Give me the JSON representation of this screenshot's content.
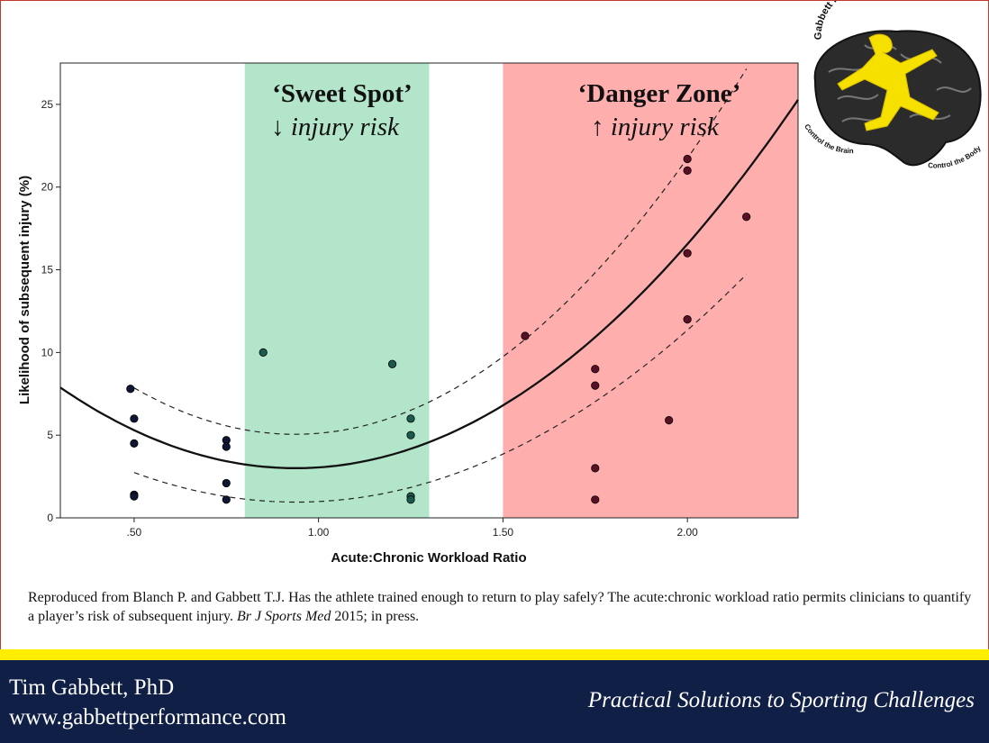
{
  "chart_data": {
    "type": "scatter",
    "xlabel": "Acute:Chronic Workload Ratio",
    "ylabel": "Likelihood of subsequent injury (%)",
    "xlim": [
      0.3,
      2.3
    ],
    "ylim": [
      0,
      27.5
    ],
    "x_ticks": [
      0.5,
      1.0,
      1.5,
      2.0
    ],
    "x_tick_labels": [
      ".50",
      "1.00",
      "1.50",
      "2.00"
    ],
    "y_ticks": [
      0,
      5,
      10,
      15,
      20,
      25
    ],
    "y_tick_labels": [
      "0",
      "5",
      "10",
      "15",
      "20",
      "25"
    ],
    "grid": false,
    "zones": [
      {
        "name": "Sweet Spot",
        "title": "‘Sweet Spot’",
        "subtitle_arrow": "↓",
        "subtitle_text": "injury risk",
        "x_range": [
          0.8,
          1.3
        ],
        "color": "#b3e5cb"
      },
      {
        "name": "Danger Zone",
        "title": "‘Danger Zone’",
        "subtitle_arrow": "↑",
        "subtitle_text": "injury risk",
        "x_range": [
          1.5,
          2.3
        ],
        "color": "#ffaeae"
      }
    ],
    "points": [
      {
        "x": 0.49,
        "y": 7.8
      },
      {
        "x": 0.5,
        "y": 6.0
      },
      {
        "x": 0.5,
        "y": 4.5
      },
      {
        "x": 0.5,
        "y": 1.4
      },
      {
        "x": 0.5,
        "y": 1.3
      },
      {
        "x": 0.75,
        "y": 4.7
      },
      {
        "x": 0.75,
        "y": 4.3
      },
      {
        "x": 0.75,
        "y": 2.1
      },
      {
        "x": 0.75,
        "y": 1.1
      },
      {
        "x": 0.85,
        "y": 10.0
      },
      {
        "x": 1.2,
        "y": 9.3
      },
      {
        "x": 1.25,
        "y": 6.0
      },
      {
        "x": 1.25,
        "y": 5.0
      },
      {
        "x": 1.25,
        "y": 1.3
      },
      {
        "x": 1.25,
        "y": 1.1
      },
      {
        "x": 1.56,
        "y": 11.0
      },
      {
        "x": 1.75,
        "y": 9.0
      },
      {
        "x": 1.75,
        "y": 8.0
      },
      {
        "x": 1.75,
        "y": 3.0
      },
      {
        "x": 1.75,
        "y": 1.1
      },
      {
        "x": 1.95,
        "y": 5.9
      },
      {
        "x": 2.0,
        "y": 21.7
      },
      {
        "x": 2.0,
        "y": 21.0
      },
      {
        "x": 2.0,
        "y": 16.0
      },
      {
        "x": 2.0,
        "y": 12.0
      },
      {
        "x": 2.16,
        "y": 18.2
      }
    ],
    "fit": {
      "type": "quadratic",
      "x_range": [
        0.3,
        2.3
      ],
      "coefficients": {
        "a": 12.0,
        "b": -22.5,
        "c": 13.55
      },
      "ci_x_range": [
        0.5,
        2.16
      ],
      "ci_halfwidth": {
        "base": 0.45,
        "scale": 5.0,
        "center": 0.93
      },
      "ci_y_low_min": 0.9,
      "ci_y_high_min": 5.05
    },
    "point_color_inside": "#1c5a50",
    "point_color_outside": "#0e1633",
    "point_color_danger": "#5a0f26"
  },
  "logo": {
    "title": "Gabbett Performance Solutions",
    "left_caption": "Control the Brain",
    "right_caption": "Control the Body"
  },
  "citation": {
    "text_before": "Reproduced from Blanch P. and Gabbett T.J. Has the athlete trained enough to return to play safely? The acute:chronic workload ratio permits clinicians to quantify a player’s risk of subsequent injury.",
    "journal": "Br J Sports Med",
    "text_after": "2015; in press."
  },
  "footer": {
    "name": "Tim Gabbett, PhD",
    "url": "www.gabbettperformance.com",
    "tagline": "Practical Solutions to Sporting Challenges"
  },
  "colors": {
    "accent_yellow": "#ffee00",
    "footer_navy": "#101f45",
    "sweet_spot_green": "#b3e5cb",
    "danger_red": "#ffaeae"
  }
}
